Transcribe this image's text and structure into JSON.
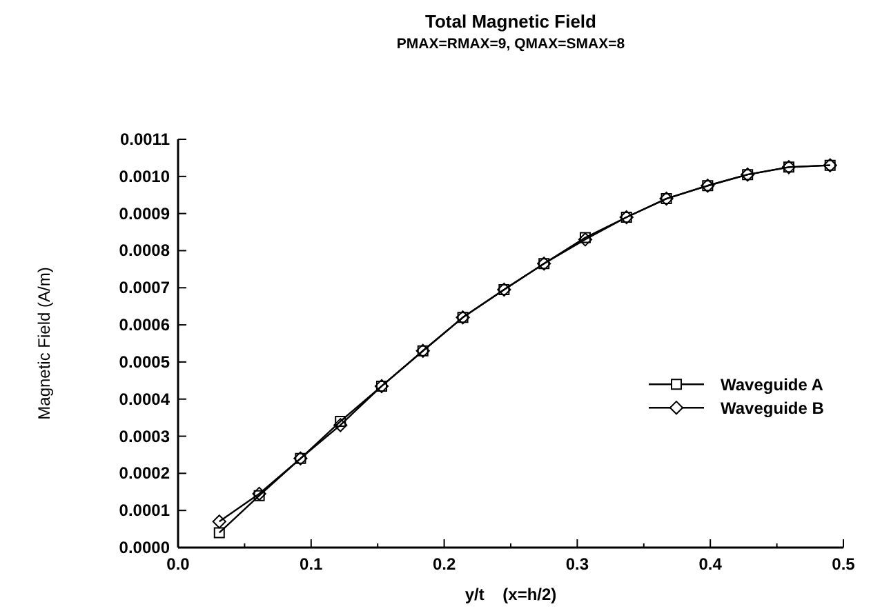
{
  "chart_data": {
    "type": "line",
    "title": "Total Magnetic Field",
    "subtitle": "PMAX=RMAX=9, QMAX=SMAX=8",
    "xlabel": "y/t    (x=h/2)",
    "ylabel": "Magnetic Field (A/m)",
    "x": [
      0.031,
      0.061,
      0.092,
      0.122,
      0.153,
      0.184,
      0.214,
      0.245,
      0.275,
      0.306,
      0.337,
      0.367,
      0.398,
      0.428,
      0.459,
      0.49
    ],
    "series": [
      {
        "name": "Waveguide A",
        "color": "#000000",
        "marker": "square",
        "values": [
          4e-05,
          0.00014,
          0.00024,
          0.00034,
          0.000435,
          0.00053,
          0.00062,
          0.000695,
          0.000765,
          0.000835,
          0.00089,
          0.00094,
          0.000975,
          0.001005,
          0.001025,
          0.00103
        ]
      },
      {
        "name": "Waveguide B",
        "color": "#000000",
        "marker": "diamond",
        "values": [
          7e-05,
          0.000145,
          0.00024,
          0.00033,
          0.000435,
          0.00053,
          0.00062,
          0.000695,
          0.000765,
          0.00083,
          0.00089,
          0.00094,
          0.000975,
          0.001005,
          0.001025,
          0.00103
        ]
      }
    ],
    "xlim": [
      0,
      0.5
    ],
    "ylim": [
      0,
      0.0011
    ],
    "xticks": [
      {
        "value": 0,
        "label": "0.0"
      },
      0.1,
      0.2,
      0.3,
      0.4,
      0.5,
      {
        "value": 0.05,
        "label": null
      },
      {
        "value": 0.15,
        "label": null
      },
      {
        "value": 0.25,
        "label": null
      },
      {
        "value": 0.35,
        "label": null
      },
      {
        "value": 0.45,
        "label": null
      }
    ],
    "yticks": [
      {
        "value": 0,
        "label": "0.0000"
      },
      {
        "value": 0.0001,
        "label": "0.0001"
      },
      {
        "value": 0.0002,
        "label": "0.0002"
      },
      {
        "value": 0.0003,
        "label": "0.0003"
      },
      {
        "value": 0.0004,
        "label": "0.0004"
      },
      {
        "value": 0.0005,
        "label": "0.0005"
      },
      {
        "value": 0.0006,
        "label": "0.0006"
      },
      {
        "value": 0.0007,
        "label": "0.0007"
      },
      {
        "value": 0.0008,
        "label": "0.0008"
      },
      {
        "value": 0.0009,
        "label": "0.0009"
      },
      {
        "value": 0.001,
        "label": "0.0010"
      },
      {
        "value": 0.0011,
        "label": "0.0011"
      }
    ],
    "grid": false,
    "legend": "right",
    "line_style": "solid"
  }
}
